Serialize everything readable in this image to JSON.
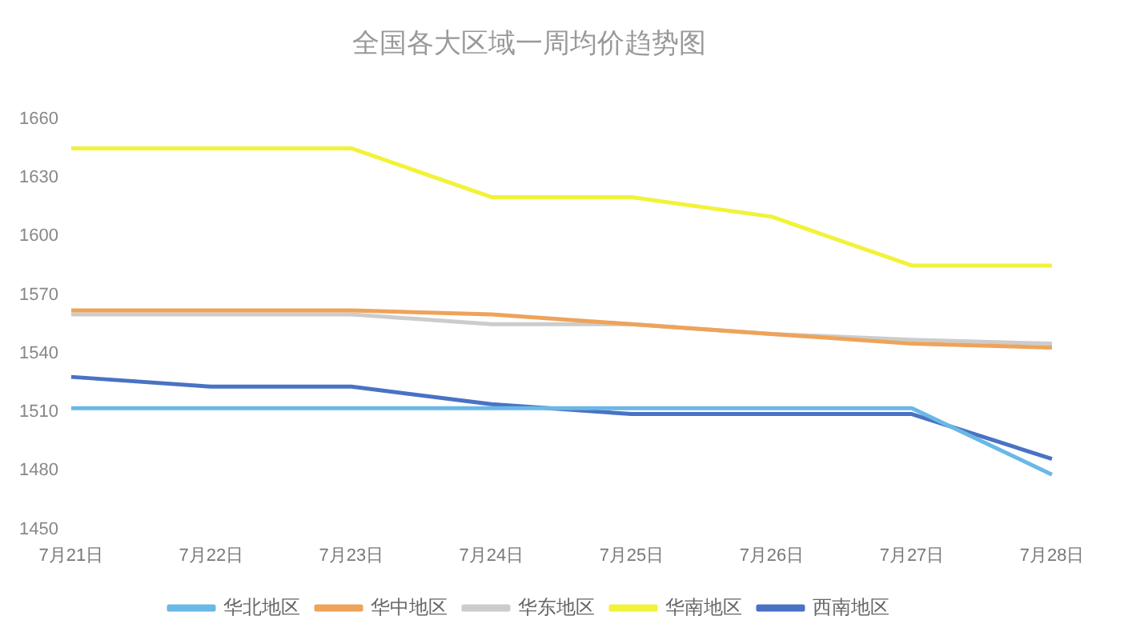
{
  "chart_data": {
    "type": "line",
    "title": "全国各大区域一周均价趋势图",
    "categories": [
      "7月21日",
      "7月22日",
      "7月23日",
      "7月24日",
      "7月25日",
      "7月26日",
      "7月27日",
      "7月28日"
    ],
    "series": [
      {
        "name": "华北地区",
        "color": "#6ab8e6",
        "values": [
          1512,
          1512,
          1512,
          1512,
          1512,
          1512,
          1512,
          1478
        ]
      },
      {
        "name": "华中地区",
        "color": "#eea35a",
        "values": [
          1562,
          1562,
          1562,
          1560,
          1555,
          1550,
          1545,
          1543
        ]
      },
      {
        "name": "华东地区",
        "color": "#cccccc",
        "values": [
          1560,
          1560,
          1560,
          1555,
          1555,
          1550,
          1547,
          1545
        ]
      },
      {
        "name": "华南地区",
        "color": "#f2f23a",
        "values": [
          1645,
          1645,
          1645,
          1620,
          1620,
          1610,
          1585,
          1585
        ]
      },
      {
        "name": "西南地区",
        "color": "#4a72c4",
        "values": [
          1528,
          1523,
          1523,
          1514,
          1509,
          1509,
          1509,
          1486
        ]
      }
    ],
    "ylim": [
      1450,
      1660
    ],
    "yticks": [
      1450,
      1480,
      1510,
      1540,
      1570,
      1600,
      1630,
      1660
    ],
    "grid": false,
    "legend": "bottom",
    "marker": "none",
    "line_style": "solid"
  }
}
